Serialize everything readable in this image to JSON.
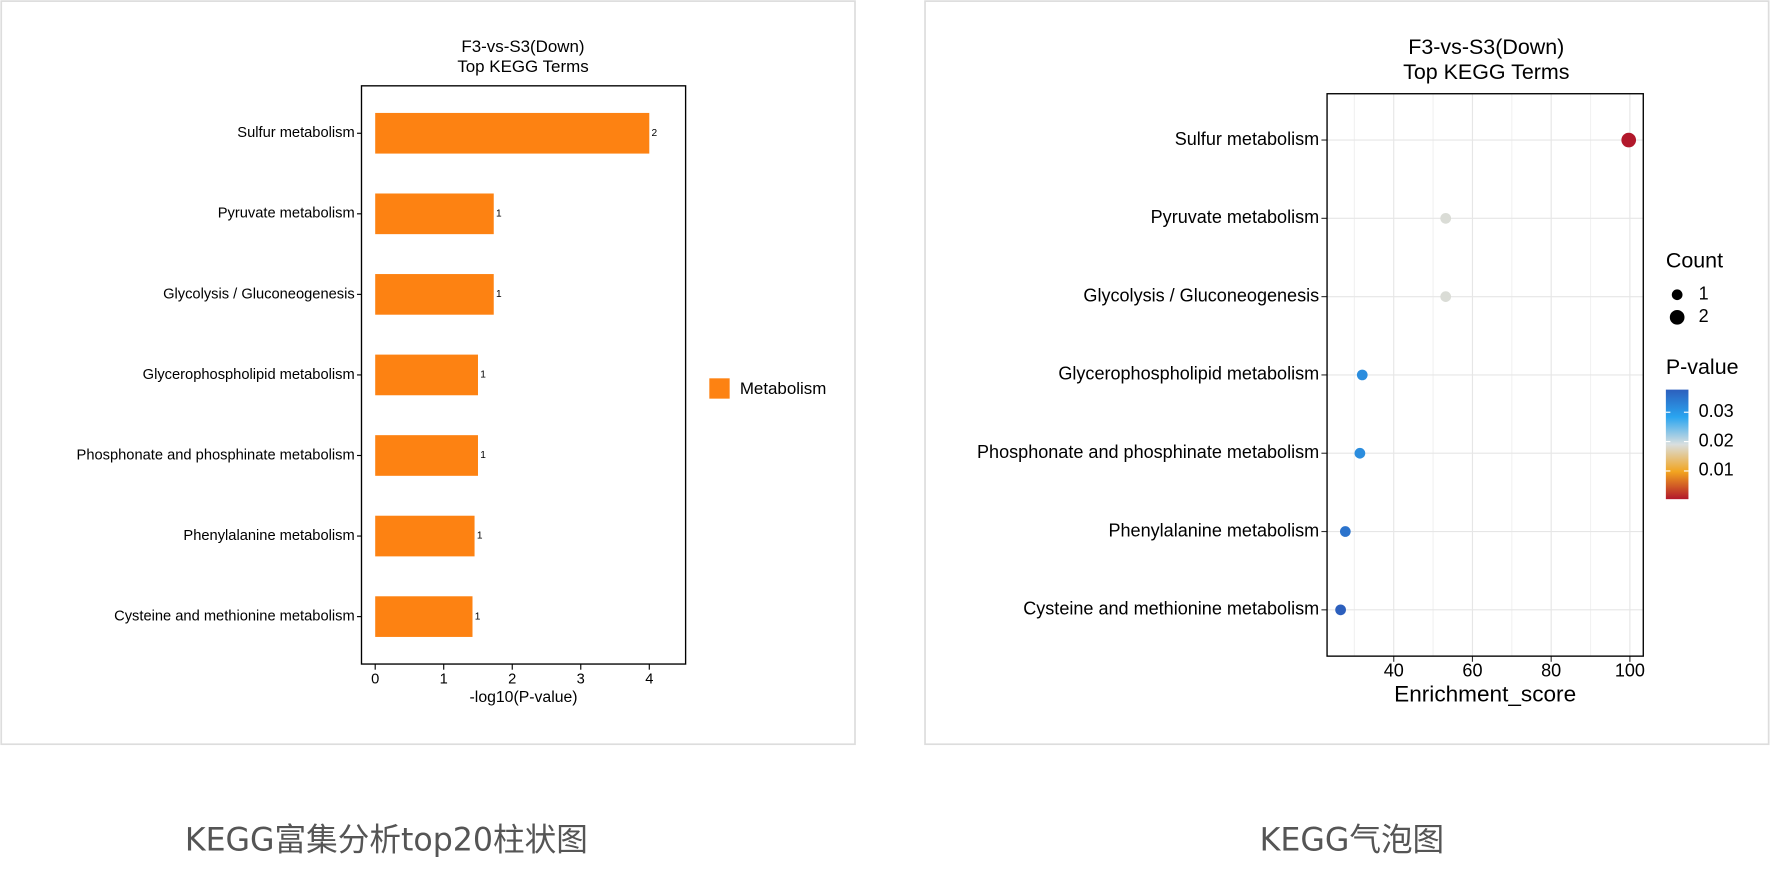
{
  "chart_data": [
    {
      "type": "bar",
      "title": "F3-vs-S3(Down)",
      "subtitle": "Top KEGG Terms",
      "categories": [
        "Sulfur metabolism",
        "Pyruvate metabolism",
        "Glycolysis / Gluconeogenesis",
        "Glycerophospholipid metabolism",
        "Phosphonate and phosphinate metabolism",
        "Phenylalanine metabolism",
        "Cysteine and methionine metabolism"
      ],
      "values": [
        4.0,
        1.73,
        1.73,
        1.5,
        1.5,
        1.45,
        1.42
      ],
      "counts": [
        2,
        1,
        1,
        1,
        1,
        1,
        1
      ],
      "color": "#fd8212",
      "legend": "Metabolism",
      "xlabel": "-log10(P-value)",
      "xlim": [
        -0.2,
        4.53
      ],
      "xticks": [
        0,
        1,
        2,
        3,
        4
      ]
    },
    {
      "type": "bubble",
      "title": "F3-vs-S3(Down)",
      "subtitle": "Top KEGG Terms",
      "categories": [
        "Sulfur metabolism",
        "Pyruvate metabolism",
        "Glycolysis / Gluconeogenesis",
        "Glycerophospholipid metabolism",
        "Phosphonate and phosphinate metabolism",
        "Phenylalanine metabolism",
        "Cysteine and methionine metabolism"
      ],
      "values": [
        99.7,
        53.2,
        53.2,
        32.0,
        31.4,
        27.7,
        26.5
      ],
      "pvalue": [
        0.0001,
        0.0186,
        0.0186,
        0.0316,
        0.0316,
        0.035,
        0.038
      ],
      "count": [
        2,
        1,
        1,
        1,
        1,
        1,
        1
      ],
      "xlabel": "Enrichment_score",
      "xlim": [
        23.06,
        103.4
      ],
      "xticks": [
        40,
        60,
        80,
        100
      ],
      "minor_xticks": [
        30,
        50,
        70,
        90
      ],
      "grid": true,
      "size_legend_title": "Count",
      "size_legend": [
        1,
        2
      ],
      "color_legend_title": "P-value",
      "clim": [
        0.0004,
        0.0377
      ],
      "cticks": [
        0.01,
        0.02,
        0.03
      ],
      "colorscale": [
        "#b2182b",
        "#f2a41f",
        "#d9dfdf",
        "#2aa5f0",
        "#2c5fbd"
      ]
    }
  ],
  "captions": [
    "KEGG富集分析top20柱状图",
    "KEGG气泡图"
  ]
}
